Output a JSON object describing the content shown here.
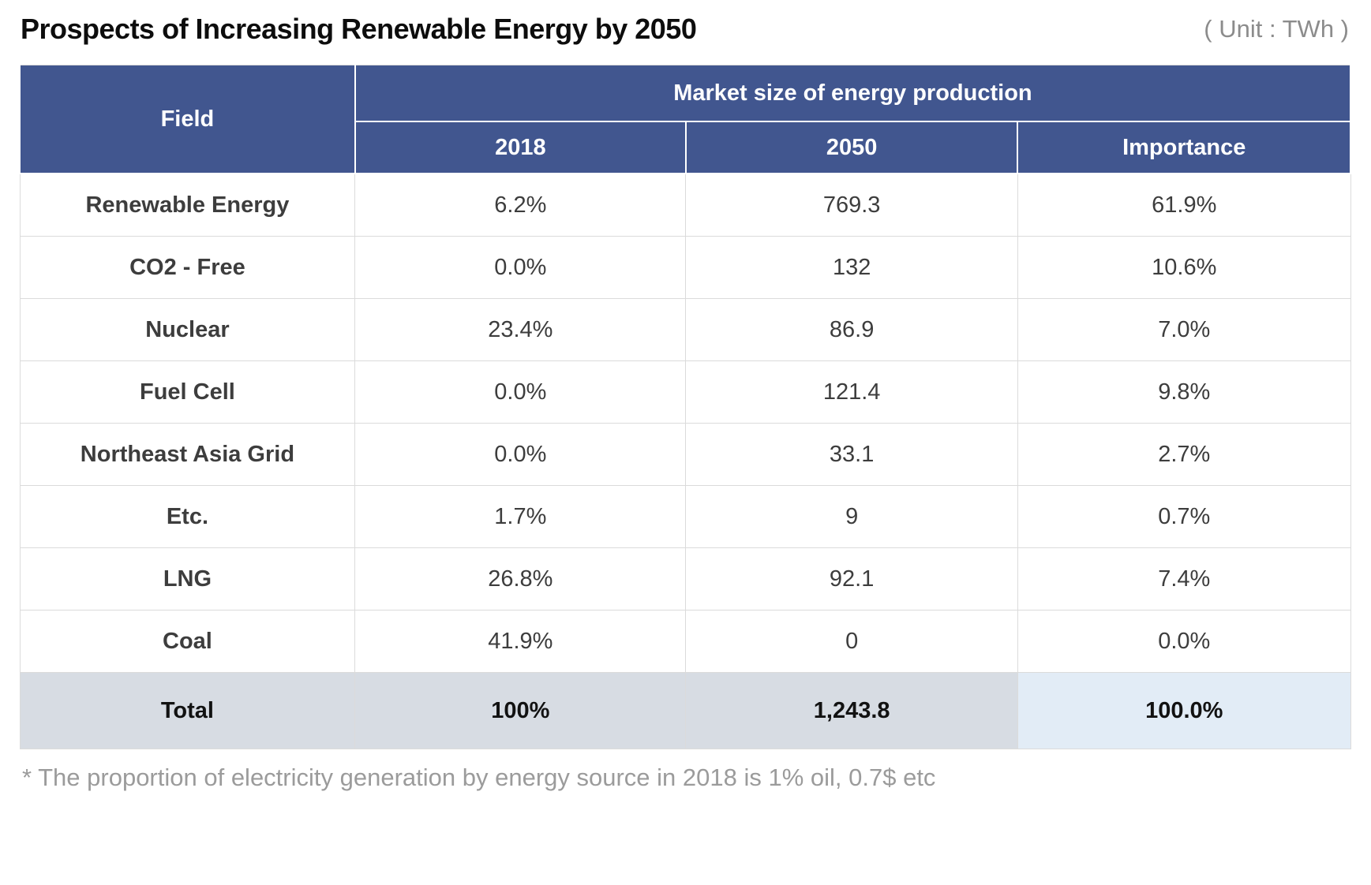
{
  "page": {
    "title": "Prospects of Increasing Renewable Energy by 2050",
    "unit_label": "( Unit : TWh )",
    "footnote": "* The proportion of electricity generation by energy source in 2018 is 1% oil, 0.7$ etc"
  },
  "table": {
    "field_header": "Field",
    "group_header": "Market size of energy production",
    "columns": [
      "2018",
      "2050",
      "Importance"
    ],
    "rows": [
      {
        "field": "Renewable Energy",
        "y2018": "6.2%",
        "y2050": "769.3",
        "importance": "61.9%"
      },
      {
        "field": "CO2 - Free",
        "y2018": "0.0%",
        "y2050": "132",
        "importance": "10.6%"
      },
      {
        "field": "Nuclear",
        "y2018": "23.4%",
        "y2050": "86.9",
        "importance": "7.0%"
      },
      {
        "field": "Fuel Cell",
        "y2018": "0.0%",
        "y2050": "121.4",
        "importance": "9.8%"
      },
      {
        "field": "Northeast Asia Grid",
        "y2018": "0.0%",
        "y2050": "33.1",
        "importance": "2.7%"
      },
      {
        "field": "Etc.",
        "y2018": "1.7%",
        "y2050": "9",
        "importance": "0.7%"
      },
      {
        "field": "LNG",
        "y2018": "26.8%",
        "y2050": "92.1",
        "importance": "7.4%"
      },
      {
        "field": "Coal",
        "y2018": "41.9%",
        "y2050": "0",
        "importance": "0.0%"
      }
    ],
    "total": {
      "field": "Total",
      "y2018": "100%",
      "y2050": "1,243.8",
      "importance": "100.0%"
    }
  },
  "colors": {
    "header_blue": "#41568F",
    "importance_column_bg": "#DDE9F5",
    "total_row_bg": "#D7DCE3",
    "total_importance_bg": "#E2ECF6",
    "field_label_navy": "#1F3864",
    "gridline": "#DBDBDB",
    "footnote_gray": "#9B9B9B"
  },
  "chart_data": {
    "type": "table",
    "title": "Prospects of Increasing Renewable Energy by 2050",
    "unit": "TWh",
    "categories": [
      "Renewable Energy",
      "CO2 - Free",
      "Nuclear",
      "Fuel Cell",
      "Northeast Asia Grid",
      "Etc.",
      "LNG",
      "Coal",
      "Total"
    ],
    "series": [
      {
        "name": "2018",
        "values": [
          "6.2%",
          "0.0%",
          "23.4%",
          "0.0%",
          "0.0%",
          "1.7%",
          "26.8%",
          "41.9%",
          "100%"
        ]
      },
      {
        "name": "2050",
        "values": [
          769.3,
          132,
          86.9,
          121.4,
          33.1,
          9,
          92.1,
          0,
          1243.8
        ]
      },
      {
        "name": "Importance",
        "values": [
          "61.9%",
          "10.6%",
          "7.0%",
          "9.8%",
          "2.7%",
          "0.7%",
          "7.4%",
          "0.0%",
          "100.0%"
        ]
      }
    ]
  }
}
